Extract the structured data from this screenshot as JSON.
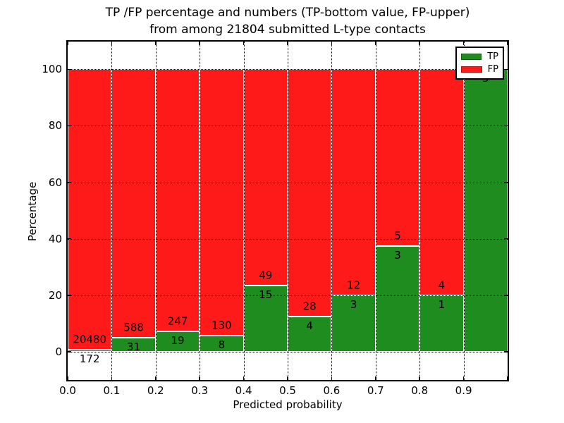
{
  "title": {
    "line1": "TP /FP percentage and numbers (TP-bottom value, FP-upper)",
    "line2": "from among 21804 submitted L-type contacts"
  },
  "axes": {
    "xlabel": "Predicted probability",
    "ylabel": "Percentage",
    "x_ticks": [
      "0.0",
      "0.1",
      "0.2",
      "0.3",
      "0.4",
      "0.5",
      "0.6",
      "0.7",
      "0.8",
      "0.9"
    ],
    "y_ticks": [
      "0",
      "20",
      "40",
      "60",
      "80",
      "100"
    ]
  },
  "legend": {
    "items": [
      {
        "label": "TP",
        "color": "#1e8c1e"
      },
      {
        "label": "FP",
        "color": "#ff1a1a"
      }
    ]
  },
  "colors": {
    "tp_green": "#1e8c1e",
    "fp_red": "#ff1a1a",
    "grid": "#000000",
    "background": "#ffffff"
  },
  "chart_data": {
    "type": "bar",
    "stacked": true,
    "normalized_to_percent": true,
    "title": "TP /FP percentage and numbers (TP-bottom value, FP-upper) from among 21804 submitted L-type contacts",
    "xlabel": "Predicted probability",
    "ylabel": "Percentage",
    "total_submitted": 21804,
    "xlim": [
      0.0,
      1.0
    ],
    "ylim": [
      -10,
      109.8
    ],
    "grid": true,
    "legend_position": "upper right",
    "x_tick_values": [
      0.0,
      0.1,
      0.2,
      0.3,
      0.4,
      0.5,
      0.6,
      0.7,
      0.8,
      0.9
    ],
    "y_tick_values": [
      0,
      20,
      40,
      60,
      80,
      100
    ],
    "bins": [
      {
        "range": "0.0-0.1",
        "tp": 172,
        "fp": 20480,
        "tp_pct": 0.83,
        "tp_label": "172",
        "fp_label": "20480"
      },
      {
        "range": "0.1-0.2",
        "tp": 31,
        "fp": 588,
        "tp_pct": 5.01,
        "tp_label": "31",
        "fp_label": "588"
      },
      {
        "range": "0.2-0.3",
        "tp": 19,
        "fp": 247,
        "tp_pct": 7.14,
        "tp_label": "19",
        "fp_label": "247"
      },
      {
        "range": "0.3-0.4",
        "tp": 8,
        "fp": 130,
        "tp_pct": 5.8,
        "tp_label": "8",
        "fp_label": "130"
      },
      {
        "range": "0.4-0.5",
        "tp": 15,
        "fp": 49,
        "tp_pct": 23.44,
        "tp_label": "15",
        "fp_label": "49"
      },
      {
        "range": "0.5-0.6",
        "tp": 4,
        "fp": 28,
        "tp_pct": 12.5,
        "tp_label": "4",
        "fp_label": "28"
      },
      {
        "range": "0.6-0.7",
        "tp": 3,
        "fp": 12,
        "tp_pct": 20.0,
        "tp_label": "3",
        "fp_label": "12"
      },
      {
        "range": "0.7-0.8",
        "tp": 3,
        "fp": 5,
        "tp_pct": 37.5,
        "tp_label": "3",
        "fp_label": "5"
      },
      {
        "range": "0.8-0.9",
        "tp": 1,
        "fp": 4,
        "tp_pct": 20.0,
        "tp_label": "1",
        "fp_label": "4"
      },
      {
        "range": "0.9-1.0",
        "tp": 5,
        "fp": 0,
        "tp_pct": 100.0,
        "tp_label": "5",
        "fp_label": ""
      }
    ],
    "series": [
      {
        "name": "TP",
        "color": "#1e8c1e",
        "counts": [
          172,
          31,
          19,
          8,
          15,
          4,
          3,
          3,
          1,
          5
        ]
      },
      {
        "name": "FP",
        "color": "#ff1a1a",
        "counts": [
          20480,
          588,
          247,
          130,
          49,
          28,
          12,
          5,
          4,
          0
        ]
      }
    ]
  }
}
